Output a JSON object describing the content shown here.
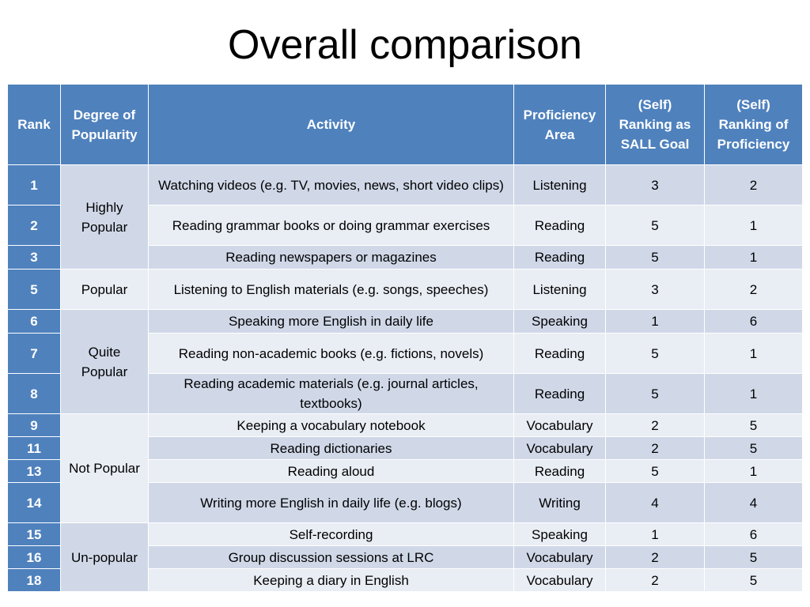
{
  "title": "Overall comparison",
  "table": {
    "headers": {
      "rank": "Rank",
      "popularity": "Degree of Popularity",
      "activity": "Activity",
      "area": "Proficiency Area",
      "sall_goal": "(Self) Ranking as SALL Goal",
      "proficiency": "(Self) Ranking of Proficiency"
    },
    "groups": [
      {
        "label": "Highly Popular"
      },
      {
        "label": "Popular"
      },
      {
        "label": "Quite Popular"
      },
      {
        "label": "Not Popular"
      },
      {
        "label": "Un-popular"
      }
    ],
    "rows": [
      {
        "rank": "1",
        "activity": "Watching videos (e.g. TV, movies, news, short video clips)",
        "area": "Listening",
        "sall_goal": "3",
        "proficiency": "2"
      },
      {
        "rank": "2",
        "activity": "Reading grammar books or doing grammar exercises",
        "area": "Reading",
        "sall_goal": "5",
        "proficiency": "1"
      },
      {
        "rank": "3",
        "activity": "Reading newspapers or magazines",
        "area": "Reading",
        "sall_goal": "5",
        "proficiency": "1"
      },
      {
        "rank": "5",
        "activity": "Listening to English materials (e.g. songs, speeches)",
        "area": "Listening",
        "sall_goal": "3",
        "proficiency": "2"
      },
      {
        "rank": "6",
        "activity": "Speaking more English in daily life",
        "area": "Speaking",
        "sall_goal": "1",
        "proficiency": "6"
      },
      {
        "rank": "7",
        "activity": "Reading non-academic books (e.g. fictions, novels)",
        "area": "Reading",
        "sall_goal": "5",
        "proficiency": "1"
      },
      {
        "rank": "8",
        "activity": "Reading academic materials (e.g. journal articles, textbooks)",
        "area": "Reading",
        "sall_goal": "5",
        "proficiency": "1"
      },
      {
        "rank": "9",
        "activity": "Keeping a vocabulary notebook",
        "area": "Vocabulary",
        "sall_goal": "2",
        "proficiency": "5"
      },
      {
        "rank": "11",
        "activity": "Reading dictionaries",
        "area": "Vocabulary",
        "sall_goal": "2",
        "proficiency": "5"
      },
      {
        "rank": "13",
        "activity": "Reading aloud",
        "area": "Reading",
        "sall_goal": "5",
        "proficiency": "1"
      },
      {
        "rank": "14",
        "activity": "Writing more English in daily life (e.g. blogs)",
        "area": "Writing",
        "sall_goal": "4",
        "proficiency": "4"
      },
      {
        "rank": "15",
        "activity": "Self-recording",
        "area": "Speaking",
        "sall_goal": "1",
        "proficiency": "6"
      },
      {
        "rank": "16",
        "activity": "Group discussion sessions at LRC",
        "area": "Vocabulary",
        "sall_goal": "2",
        "proficiency": "5"
      },
      {
        "rank": "18",
        "activity": "Keeping a diary in English",
        "area": "Vocabulary",
        "sall_goal": "2",
        "proficiency": "5"
      }
    ]
  }
}
